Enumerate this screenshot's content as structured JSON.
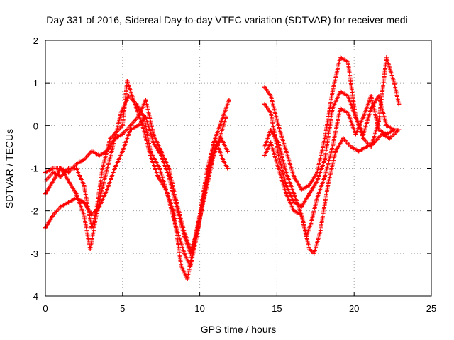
{
  "chart_data": {
    "type": "scatter",
    "title": "Day 331 of 2016, Sidereal Day-to-day VTEC variation (SDTVAR) for receiver medi",
    "xlabel": "GPS time / hours",
    "ylabel": "SDTVAR / TECUs",
    "xlim": [
      0,
      25
    ],
    "ylim": [
      -4,
      2
    ],
    "xticks": [
      "0",
      "5",
      "10",
      "15",
      "20",
      "25"
    ],
    "yticks": [
      "-4",
      "-3",
      "-2",
      "-1",
      "0",
      "1",
      "2"
    ],
    "grid": true,
    "legend": "none",
    "marker": "+",
    "series_color": "#ff0000",
    "series": [
      {
        "points": [
          [
            0,
            -1.3
          ],
          [
            0.5,
            -1.1
          ],
          [
            1,
            -1.2
          ],
          [
            1.5,
            -1.0
          ],
          [
            2,
            -1.0
          ],
          [
            2.5,
            -1.4
          ],
          [
            3,
            -2.4
          ],
          [
            3.3,
            -2.0
          ],
          [
            3.7,
            -1.0
          ],
          [
            4.2,
            -0.3
          ],
          [
            5,
            0.0
          ],
          [
            5.3,
            1.05
          ],
          [
            5.8,
            0.5
          ],
          [
            6.3,
            0.0
          ],
          [
            6.8,
            -0.7
          ],
          [
            7.3,
            -1.2
          ],
          [
            7.8,
            -1.5
          ],
          [
            8.3,
            -2.0
          ],
          [
            8.8,
            -3.3
          ],
          [
            9.2,
            -3.6
          ],
          [
            9.6,
            -2.8
          ],
          [
            10.1,
            -2.0
          ],
          [
            10.6,
            -1.2
          ],
          [
            11.0,
            -0.5
          ],
          [
            11.4,
            -0.3
          ],
          [
            11.8,
            -0.6
          ]
        ]
      },
      {
        "points": [
          [
            0,
            -1.6
          ],
          [
            0.5,
            -1.3
          ],
          [
            1,
            -1.0
          ],
          [
            1.5,
            -1.3
          ],
          [
            2,
            -1.6
          ],
          [
            2.5,
            -2.1
          ],
          [
            2.9,
            -2.9
          ],
          [
            3.3,
            -2.1
          ],
          [
            3.8,
            -1.3
          ],
          [
            4.3,
            -0.6
          ],
          [
            4.9,
            0.3
          ],
          [
            5.4,
            0.7
          ],
          [
            5.9,
            0.5
          ],
          [
            6.4,
            0.2
          ],
          [
            6.8,
            -0.6
          ],
          [
            7.4,
            -1.0
          ],
          [
            7.9,
            -1.6
          ],
          [
            8.4,
            -2.3
          ],
          [
            9.0,
            -3.0
          ],
          [
            9.4,
            -3.3
          ],
          [
            9.8,
            -2.6
          ],
          [
            10.3,
            -1.6
          ],
          [
            10.8,
            -0.8
          ],
          [
            11.2,
            -0.4
          ],
          [
            11.7,
            0.2
          ]
        ]
      },
      {
        "points": [
          [
            0,
            -2.4
          ],
          [
            0.5,
            -2.1
          ],
          [
            1,
            -1.9
          ],
          [
            1.5,
            -1.8
          ],
          [
            2,
            -1.7
          ],
          [
            2.5,
            -1.8
          ],
          [
            3,
            -2.1
          ],
          [
            3.5,
            -1.9
          ],
          [
            4,
            -1.5
          ],
          [
            4.5,
            -1.0
          ],
          [
            5,
            -0.6
          ],
          [
            5.5,
            -0.1
          ],
          [
            6,
            0.0
          ],
          [
            6.5,
            0.2
          ],
          [
            7,
            -0.4
          ],
          [
            7.5,
            -0.7
          ],
          [
            8,
            -1.2
          ],
          [
            8.5,
            -1.9
          ],
          [
            9,
            -2.6
          ],
          [
            9.4,
            -3.0
          ],
          [
            9.9,
            -2.4
          ],
          [
            10.4,
            -1.4
          ],
          [
            10.9,
            -0.4
          ],
          [
            11.4,
            0.1
          ],
          [
            11.9,
            0.6
          ]
        ]
      },
      {
        "points": [
          [
            0,
            -1.1
          ],
          [
            0.5,
            -1.0
          ],
          [
            1,
            -1.0
          ],
          [
            1.5,
            -1.1
          ],
          [
            2,
            -0.9
          ],
          [
            2.5,
            -0.8
          ],
          [
            3,
            -0.6
          ],
          [
            3.5,
            -0.7
          ],
          [
            4,
            -0.6
          ],
          [
            4.5,
            -0.3
          ],
          [
            5,
            -0.2
          ],
          [
            5.5,
            0.0
          ],
          [
            6,
            0.2
          ],
          [
            6.5,
            0.6
          ],
          [
            7,
            -0.2
          ],
          [
            7.5,
            -0.6
          ],
          [
            8,
            -1.0
          ],
          [
            8.5,
            -1.8
          ],
          [
            9,
            -2.5
          ],
          [
            9.5,
            -3.0
          ],
          [
            10,
            -2.1
          ],
          [
            10.5,
            -1.0
          ],
          [
            11,
            -0.3
          ],
          [
            11.5,
            -0.8
          ],
          [
            11.8,
            -1.0
          ]
        ]
      },
      {
        "points": [
          [
            14.2,
            0.9
          ],
          [
            14.6,
            0.7
          ],
          [
            15.1,
            0.0
          ],
          [
            15.6,
            -0.6
          ],
          [
            16.1,
            -1.2
          ],
          [
            16.6,
            -1.5
          ],
          [
            17.1,
            -1.4
          ],
          [
            17.6,
            -1.1
          ],
          [
            18.1,
            -0.3
          ],
          [
            18.6,
            0.8
          ],
          [
            19.1,
            1.6
          ],
          [
            19.6,
            1.5
          ],
          [
            20.1,
            0.2
          ],
          [
            20.6,
            -0.3
          ],
          [
            21.1,
            -0.5
          ],
          [
            21.6,
            0.1
          ],
          [
            22.1,
            1.6
          ],
          [
            22.6,
            1.0
          ],
          [
            22.9,
            0.5
          ]
        ]
      },
      {
        "points": [
          [
            14.2,
            0.5
          ],
          [
            14.6,
            0.3
          ],
          [
            15.1,
            -0.7
          ],
          [
            15.6,
            -1.4
          ],
          [
            16.1,
            -1.8
          ],
          [
            16.6,
            -1.9
          ],
          [
            17.1,
            -1.6
          ],
          [
            17.6,
            -1.3
          ],
          [
            18.1,
            -0.8
          ],
          [
            18.6,
            0.4
          ],
          [
            19.1,
            0.8
          ],
          [
            19.6,
            0.7
          ],
          [
            20.1,
            0.2
          ],
          [
            20.6,
            -0.2
          ],
          [
            21.1,
            0.4
          ],
          [
            21.6,
            0.7
          ],
          [
            22.1,
            0.0
          ],
          [
            22.6,
            -0.1
          ]
        ]
      },
      {
        "points": [
          [
            14.2,
            -0.5
          ],
          [
            14.6,
            -0.1
          ],
          [
            15.1,
            -0.4
          ],
          [
            15.6,
            -1.1
          ],
          [
            16.1,
            -1.6
          ],
          [
            16.6,
            -2.1
          ],
          [
            16.9,
            -2.6
          ],
          [
            17.2,
            -2.3
          ],
          [
            17.6,
            -1.7
          ],
          [
            18.1,
            -1.2
          ],
          [
            18.6,
            -0.5
          ],
          [
            19.1,
            0.4
          ],
          [
            19.6,
            0.3
          ],
          [
            20.1,
            -0.2
          ],
          [
            20.6,
            0.2
          ],
          [
            21.1,
            0.7
          ],
          [
            21.6,
            -0.1
          ],
          [
            22.1,
            -0.2
          ],
          [
            22.6,
            -0.1
          ],
          [
            22.9,
            -0.1
          ]
        ]
      },
      {
        "points": [
          [
            14.2,
            -0.7
          ],
          [
            14.6,
            -0.4
          ],
          [
            15.1,
            -1.0
          ],
          [
            15.6,
            -1.6
          ],
          [
            16.1,
            -2.0
          ],
          [
            16.6,
            -2.1
          ],
          [
            17.1,
            -2.9
          ],
          [
            17.4,
            -3.0
          ],
          [
            17.8,
            -2.5
          ],
          [
            18.3,
            -1.4
          ],
          [
            18.8,
            -0.6
          ],
          [
            19.3,
            -0.3
          ],
          [
            19.8,
            -0.5
          ],
          [
            20.3,
            -0.6
          ],
          [
            20.8,
            -0.5
          ],
          [
            21.3,
            -0.4
          ],
          [
            21.8,
            -0.2
          ],
          [
            22.3,
            -0.3
          ],
          [
            22.9,
            -0.1
          ]
        ]
      }
    ]
  }
}
